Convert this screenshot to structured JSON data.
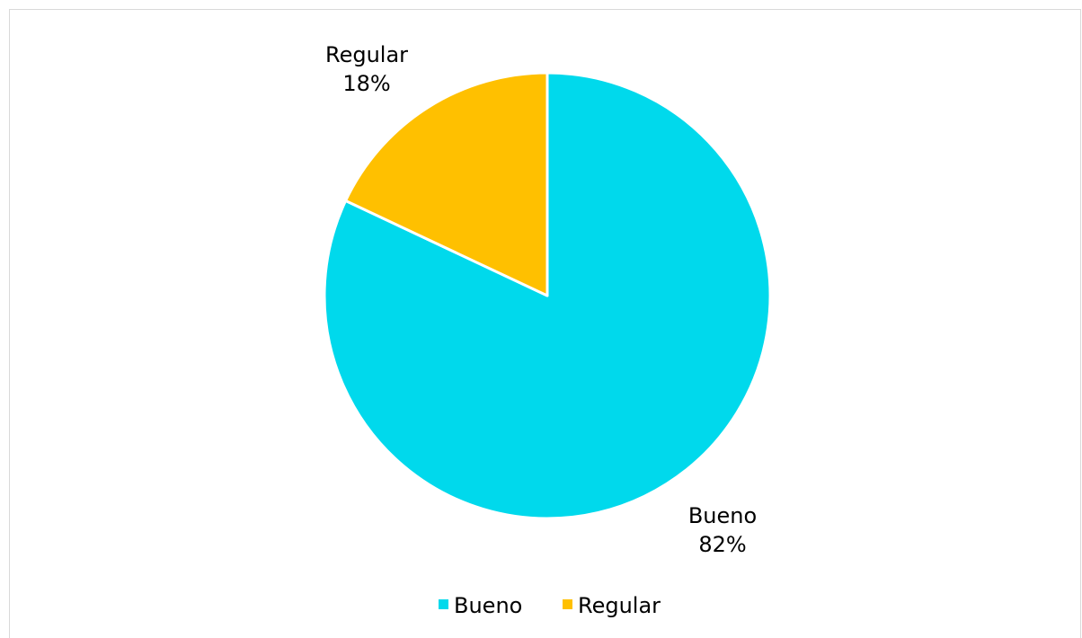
{
  "chart_data": {
    "type": "pie",
    "categories": [
      "Bueno",
      "Regular"
    ],
    "values": [
      82,
      18
    ],
    "unit": "%",
    "colors": [
      "#00d9ec",
      "#ffc000"
    ],
    "title": "",
    "legend": {
      "placement": "bottom",
      "entries": [
        "Bueno",
        "Regular"
      ]
    },
    "data_labels": [
      {
        "category": "Bueno",
        "percent": "82%"
      },
      {
        "category": "Regular",
        "percent": "18%"
      }
    ],
    "start_angle": "12 o'clock",
    "direction": "clockwise"
  }
}
